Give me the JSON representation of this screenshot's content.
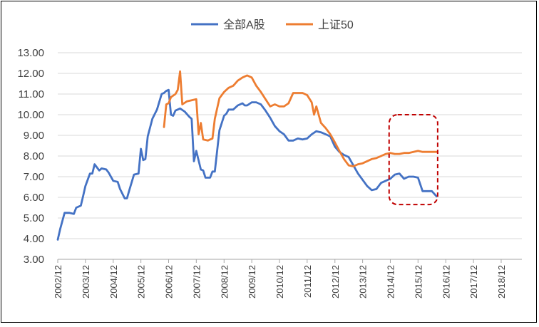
{
  "chart_data": {
    "type": "line",
    "ylim": [
      3.0,
      13.0
    ],
    "y_ticks": [
      "3.00",
      "4.00",
      "5.00",
      "6.00",
      "7.00",
      "8.00",
      "9.00",
      "10.00",
      "11.00",
      "12.00",
      "13.00"
    ],
    "x_ticks": [
      "2002/12",
      "2003/12",
      "2004/12",
      "2005/12",
      "2006/12",
      "2007/12",
      "2008/12",
      "2009/12",
      "2010/12",
      "2011/12",
      "2012/12",
      "2013/12",
      "2014/12",
      "2015/12",
      "2016/12",
      "2017/12",
      "2018/12"
    ],
    "grid": true,
    "legend_position": "top",
    "series": [
      {
        "name": "全部A股",
        "color": "#4472C4",
        "points": [
          [
            "2002-12-31",
            3.95
          ],
          [
            "2003-01-31",
            4.45
          ],
          [
            "2003-03-31",
            5.25
          ],
          [
            "2003-05-31",
            5.25
          ],
          [
            "2003-07-31",
            5.2
          ],
          [
            "2003-08-31",
            5.5
          ],
          [
            "2003-10-31",
            5.6
          ],
          [
            "2003-11-30",
            6.05
          ],
          [
            "2003-12-31",
            6.55
          ],
          [
            "2004-02-29",
            7.15
          ],
          [
            "2004-03-31",
            7.15
          ],
          [
            "2004-04-30",
            7.6
          ],
          [
            "2004-06-30",
            7.3
          ],
          [
            "2004-07-31",
            7.4
          ],
          [
            "2004-09-30",
            7.35
          ],
          [
            "2004-10-31",
            7.2
          ],
          [
            "2004-12-31",
            6.8
          ],
          [
            "2005-02-28",
            6.75
          ],
          [
            "2005-03-31",
            6.4
          ],
          [
            "2005-05-31",
            5.95
          ],
          [
            "2005-06-30",
            5.95
          ],
          [
            "2005-07-31",
            6.35
          ],
          [
            "2005-09-30",
            7.1
          ],
          [
            "2005-11-30",
            7.15
          ],
          [
            "2005-12-31",
            8.35
          ],
          [
            "2006-01-31",
            7.8
          ],
          [
            "2006-02-28",
            7.85
          ],
          [
            "2006-03-31",
            8.95
          ],
          [
            "2006-05-31",
            9.8
          ],
          [
            "2006-07-31",
            10.25
          ],
          [
            "2006-09-30",
            11.0
          ],
          [
            "2006-10-31",
            11.05
          ],
          [
            "2006-11-30",
            11.15
          ],
          [
            "2006-12-31",
            11.2
          ],
          [
            "2007-01-31",
            10.0
          ],
          [
            "2007-02-28",
            9.95
          ],
          [
            "2007-03-31",
            10.2
          ],
          [
            "2007-05-31",
            10.3
          ],
          [
            "2007-07-31",
            10.15
          ],
          [
            "2007-09-30",
            9.9
          ],
          [
            "2007-10-31",
            9.8
          ],
          [
            "2007-11-30",
            7.75
          ],
          [
            "2007-12-31",
            8.25
          ],
          [
            "2008-02-29",
            7.35
          ],
          [
            "2008-03-31",
            7.3
          ],
          [
            "2008-04-30",
            6.95
          ],
          [
            "2008-06-30",
            6.95
          ],
          [
            "2008-07-31",
            7.25
          ],
          [
            "2008-08-31",
            7.25
          ],
          [
            "2008-10-31",
            9.25
          ],
          [
            "2008-12-31",
            9.95
          ],
          [
            "2009-01-31",
            10.05
          ],
          [
            "2009-02-28",
            10.25
          ],
          [
            "2009-04-30",
            10.25
          ],
          [
            "2009-06-30",
            10.45
          ],
          [
            "2009-08-31",
            10.55
          ],
          [
            "2009-09-30",
            10.45
          ],
          [
            "2009-10-31",
            10.45
          ],
          [
            "2009-12-31",
            10.6
          ],
          [
            "2010-02-28",
            10.6
          ],
          [
            "2010-04-30",
            10.5
          ],
          [
            "2010-06-30",
            10.2
          ],
          [
            "2010-08-31",
            9.85
          ],
          [
            "2010-10-31",
            9.45
          ],
          [
            "2010-12-31",
            9.2
          ],
          [
            "2011-02-28",
            9.05
          ],
          [
            "2011-04-30",
            8.75
          ],
          [
            "2011-06-30",
            8.75
          ],
          [
            "2011-08-31",
            8.85
          ],
          [
            "2011-10-31",
            8.8
          ],
          [
            "2011-12-31",
            8.85
          ],
          [
            "2012-02-29",
            9.05
          ],
          [
            "2012-04-30",
            9.2
          ],
          [
            "2012-06-30",
            9.15
          ],
          [
            "2012-08-31",
            9.05
          ],
          [
            "2012-10-31",
            8.95
          ],
          [
            "2012-12-31",
            8.45
          ],
          [
            "2013-02-28",
            8.2
          ],
          [
            "2013-04-30",
            8.05
          ],
          [
            "2013-06-30",
            7.95
          ],
          [
            "2013-08-31",
            7.55
          ],
          [
            "2013-10-31",
            7.15
          ],
          [
            "2013-12-31",
            6.85
          ],
          [
            "2014-02-28",
            6.55
          ],
          [
            "2014-04-30",
            6.35
          ],
          [
            "2014-06-30",
            6.4
          ],
          [
            "2014-08-31",
            6.7
          ],
          [
            "2014-10-31",
            6.8
          ],
          [
            "2014-12-31",
            6.9
          ],
          [
            "2015-02-28",
            7.1
          ],
          [
            "2015-04-30",
            7.15
          ],
          [
            "2015-06-30",
            6.9
          ],
          [
            "2015-08-31",
            7.0
          ],
          [
            "2015-10-31",
            7.0
          ],
          [
            "2015-12-31",
            6.95
          ],
          [
            "2016-02-29",
            6.3
          ],
          [
            "2016-04-30",
            6.3
          ],
          [
            "2016-06-30",
            6.3
          ],
          [
            "2016-08-31",
            6.05
          ]
        ]
      },
      {
        "name": "上证50",
        "color": "#ED7D31",
        "points": [
          [
            "2006-10-31",
            9.4
          ],
          [
            "2006-11-30",
            10.5
          ],
          [
            "2006-12-31",
            10.55
          ],
          [
            "2007-01-31",
            10.85
          ],
          [
            "2007-03-31",
            11.0
          ],
          [
            "2007-04-30",
            11.2
          ],
          [
            "2007-05-31",
            12.1
          ],
          [
            "2007-06-30",
            10.5
          ],
          [
            "2007-08-31",
            10.65
          ],
          [
            "2007-10-31",
            10.7
          ],
          [
            "2007-12-31",
            10.75
          ],
          [
            "2008-01-31",
            9.05
          ],
          [
            "2008-02-29",
            9.6
          ],
          [
            "2008-03-31",
            8.8
          ],
          [
            "2008-05-31",
            8.75
          ],
          [
            "2008-06-30",
            8.8
          ],
          [
            "2008-07-31",
            8.85
          ],
          [
            "2008-08-31",
            9.8
          ],
          [
            "2008-10-31",
            10.8
          ],
          [
            "2008-12-31",
            11.1
          ],
          [
            "2009-02-28",
            11.3
          ],
          [
            "2009-04-30",
            11.4
          ],
          [
            "2009-06-30",
            11.65
          ],
          [
            "2009-08-31",
            11.8
          ],
          [
            "2009-10-31",
            11.9
          ],
          [
            "2009-12-31",
            11.8
          ],
          [
            "2010-02-28",
            11.4
          ],
          [
            "2010-04-30",
            11.1
          ],
          [
            "2010-06-30",
            10.75
          ],
          [
            "2010-08-31",
            10.4
          ],
          [
            "2010-10-31",
            10.5
          ],
          [
            "2010-12-31",
            10.4
          ],
          [
            "2011-02-28",
            10.4
          ],
          [
            "2011-04-30",
            10.55
          ],
          [
            "2011-06-30",
            11.05
          ],
          [
            "2011-08-31",
            11.05
          ],
          [
            "2011-10-31",
            11.05
          ],
          [
            "2011-12-31",
            10.95
          ],
          [
            "2012-02-29",
            10.6
          ],
          [
            "2012-03-31",
            10.0
          ],
          [
            "2012-04-30",
            10.4
          ],
          [
            "2012-06-30",
            9.6
          ],
          [
            "2012-08-31",
            9.35
          ],
          [
            "2012-10-31",
            9.05
          ],
          [
            "2012-12-31",
            8.65
          ],
          [
            "2013-02-28",
            8.25
          ],
          [
            "2013-04-30",
            7.85
          ],
          [
            "2013-06-30",
            7.55
          ],
          [
            "2013-08-31",
            7.5
          ],
          [
            "2013-10-31",
            7.6
          ],
          [
            "2013-12-31",
            7.65
          ],
          [
            "2014-02-28",
            7.75
          ],
          [
            "2014-04-30",
            7.85
          ],
          [
            "2014-06-30",
            7.9
          ],
          [
            "2014-08-31",
            8.0
          ],
          [
            "2014-10-31",
            8.1
          ],
          [
            "2014-12-31",
            8.15
          ],
          [
            "2015-02-28",
            8.1
          ],
          [
            "2015-04-30",
            8.1
          ],
          [
            "2015-06-30",
            8.15
          ],
          [
            "2015-08-31",
            8.15
          ],
          [
            "2015-10-31",
            8.2
          ],
          [
            "2015-12-31",
            8.25
          ],
          [
            "2016-02-29",
            8.2
          ],
          [
            "2016-04-30",
            8.2
          ],
          [
            "2016-06-30",
            8.2
          ],
          [
            "2016-08-31",
            8.2
          ]
        ]
      }
    ],
    "annotation": {
      "type": "dashed-rounded-rect",
      "color": "#C00000",
      "x_range": [
        "2014-12-15",
        "2016-09-15"
      ],
      "y_range": [
        5.65,
        10.0
      ]
    }
  }
}
